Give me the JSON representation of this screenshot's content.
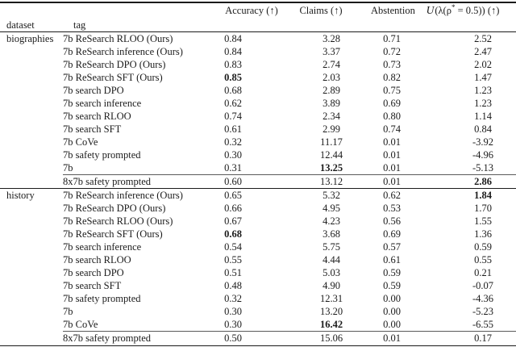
{
  "colors": {
    "text": "#1b1b1b",
    "rule": "#1b1b1b",
    "partial_rule": "#5a5a5a",
    "background": "#ffffff"
  },
  "table": {
    "header": {
      "dataset": "dataset",
      "tag": "tag",
      "accuracy": "Accuracy (↑)",
      "claims": "Claims (↑)",
      "abstention": "Abstention",
      "utility_parts": {
        "u": "U",
        "mid": "(λ(ρ",
        "star": "*",
        "tail": " = 0.5)) (↑)"
      }
    },
    "sections": [
      {
        "dataset": "biographies",
        "rows": [
          {
            "tag": "7b ReSearch RLOO (Ours)",
            "accuracy": "0.84",
            "claims": "3.28",
            "abstention": "0.71",
            "utility": "2.52",
            "bold": []
          },
          {
            "tag": "7b ReSearch inference (Ours)",
            "accuracy": "0.84",
            "claims": "3.37",
            "abstention": "0.72",
            "utility": "2.47",
            "bold": []
          },
          {
            "tag": "7b ReSearch DPO (Ours)",
            "accuracy": "0.83",
            "claims": "2.74",
            "abstention": "0.73",
            "utility": "2.02",
            "bold": []
          },
          {
            "tag": "7b ReSearch SFT (Ours)",
            "accuracy": "0.85",
            "claims": "2.03",
            "abstention": "0.82",
            "utility": "1.47",
            "bold": [
              "accuracy"
            ]
          },
          {
            "tag": "7b search DPO",
            "accuracy": "0.68",
            "claims": "2.89",
            "abstention": "0.75",
            "utility": "1.23",
            "bold": []
          },
          {
            "tag": "7b search inference",
            "accuracy": "0.62",
            "claims": "3.89",
            "abstention": "0.69",
            "utility": "1.23",
            "bold": []
          },
          {
            "tag": "7b search RLOO",
            "accuracy": "0.74",
            "claims": "2.34",
            "abstention": "0.80",
            "utility": "1.14",
            "bold": []
          },
          {
            "tag": "7b search SFT",
            "accuracy": "0.61",
            "claims": "2.99",
            "abstention": "0.74",
            "utility": "0.84",
            "bold": []
          },
          {
            "tag": "7b CoVe",
            "accuracy": "0.32",
            "claims": "11.17",
            "abstention": "0.01",
            "utility": "-3.92",
            "bold": []
          },
          {
            "tag": "7b safety prompted",
            "accuracy": "0.30",
            "claims": "12.44",
            "abstention": "0.01",
            "utility": "-4.96",
            "bold": []
          },
          {
            "tag": "7b",
            "accuracy": "0.31",
            "claims": "13.25",
            "abstention": "0.01",
            "utility": "-5.13",
            "bold": [
              "claims"
            ]
          },
          {
            "tag": "8x7b safety prompted",
            "accuracy": "0.60",
            "claims": "13.12",
            "abstention": "0.01",
            "utility": "2.86",
            "bold": [
              "utility"
            ],
            "rule_above": "partial"
          }
        ]
      },
      {
        "dataset": "history",
        "rows": [
          {
            "tag": "7b ReSearch inference (Ours)",
            "accuracy": "0.65",
            "claims": "5.32",
            "abstention": "0.62",
            "utility": "1.84",
            "bold": [
              "utility"
            ],
            "rule_above": "full"
          },
          {
            "tag": "7b ReSearch DPO (Ours)",
            "accuracy": "0.66",
            "claims": "4.95",
            "abstention": "0.53",
            "utility": "1.70",
            "bold": []
          },
          {
            "tag": "7b ReSearch RLOO (Ours)",
            "accuracy": "0.67",
            "claims": "4.23",
            "abstention": "0.56",
            "utility": "1.55",
            "bold": []
          },
          {
            "tag": "7b ReSearch SFT (Ours)",
            "accuracy": "0.68",
            "claims": "3.68",
            "abstention": "0.69",
            "utility": "1.36",
            "bold": [
              "accuracy"
            ]
          },
          {
            "tag": "7b search inference",
            "accuracy": "0.54",
            "claims": "5.75",
            "abstention": "0.57",
            "utility": "0.59",
            "bold": []
          },
          {
            "tag": "7b search RLOO",
            "accuracy": "0.55",
            "claims": "4.44",
            "abstention": "0.61",
            "utility": "0.55",
            "bold": []
          },
          {
            "tag": "7b search DPO",
            "accuracy": "0.51",
            "claims": "5.03",
            "abstention": "0.59",
            "utility": "0.21",
            "bold": []
          },
          {
            "tag": "7b search SFT",
            "accuracy": "0.48",
            "claims": "4.90",
            "abstention": "0.59",
            "utility": "-0.07",
            "bold": []
          },
          {
            "tag": "7b safety prompted",
            "accuracy": "0.32",
            "claims": "12.31",
            "abstention": "0.00",
            "utility": "-4.36",
            "bold": []
          },
          {
            "tag": "7b",
            "accuracy": "0.30",
            "claims": "13.20",
            "abstention": "0.00",
            "utility": "-5.23",
            "bold": []
          },
          {
            "tag": "7b CoVe",
            "accuracy": "0.30",
            "claims": "16.42",
            "abstention": "0.00",
            "utility": "-6.55",
            "bold": [
              "claims"
            ]
          },
          {
            "tag": "8x7b safety prompted",
            "accuracy": "0.50",
            "claims": "15.06",
            "abstention": "0.01",
            "utility": "0.17",
            "bold": [],
            "rule_above": "partial"
          }
        ]
      }
    ]
  }
}
